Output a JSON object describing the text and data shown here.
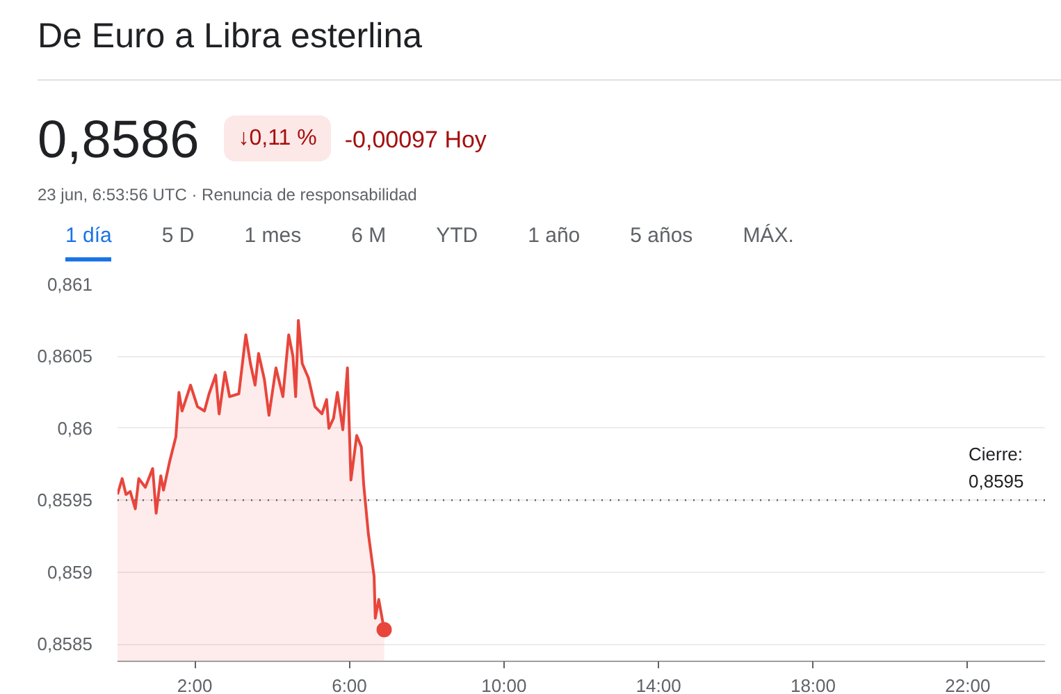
{
  "chart_data": {
    "type": "area",
    "title": "De Euro a Libra esterlina",
    "annotations": [
      "0,8586",
      "↓0,11 %",
      "-0,00097 Hoy",
      "23 jun, 6:53:56 UTC · Renuncia de responsabilidad",
      "1 día",
      "5 D",
      "1 mes",
      "6 M",
      "YTD",
      "1 año",
      "5 años",
      "MÁX."
    ],
    "x": [
      0,
      0.12,
      0.22,
      0.33,
      0.46,
      0.55,
      0.72,
      0.91,
      1.0,
      1.12,
      1.19,
      1.35,
      1.51,
      1.59,
      1.67,
      1.89,
      2.07,
      2.25,
      2.37,
      2.54,
      2.63,
      2.78,
      2.9,
      3.14,
      3.32,
      3.44,
      3.56,
      3.65,
      3.8,
      3.92,
      4.1,
      4.28,
      4.43,
      4.54,
      4.61,
      4.68,
      4.78,
      4.94,
      5.11,
      5.29,
      5.41,
      5.47,
      5.59,
      5.69,
      5.83,
      5.95,
      6.04,
      6.19,
      6.31,
      6.37,
      6.49,
      6.64,
      6.67,
      6.76,
      6.9
    ],
    "series": [
      {
        "color": "#e8453c",
        "values": [
          0.85954,
          0.85965,
          0.85954,
          0.85956,
          0.85944,
          0.85965,
          0.85959,
          0.85972,
          0.85941,
          0.85967,
          0.85957,
          0.85977,
          0.85994,
          0.86025,
          0.86012,
          0.8603,
          0.86015,
          0.86012,
          0.86024,
          0.86037,
          0.8601,
          0.86039,
          0.86022,
          0.86024,
          0.86065,
          0.86045,
          0.8603,
          0.86052,
          0.86034,
          0.86009,
          0.86042,
          0.86022,
          0.86065,
          0.8605,
          0.86022,
          0.86075,
          0.86045,
          0.86035,
          0.86015,
          0.8601,
          0.8602,
          0.86,
          0.86007,
          0.86025,
          0.85999,
          0.86042,
          0.85964,
          0.85995,
          0.85987,
          0.85961,
          0.85927,
          0.85897,
          0.85868,
          0.85881,
          0.8586
        ]
      }
    ],
    "xlim": [
      0,
      24
    ],
    "xticks": [
      {
        "value": 2,
        "label": "2:00"
      },
      {
        "value": 6,
        "label": "6:00"
      },
      {
        "value": 10,
        "label": "10:00"
      },
      {
        "value": 14,
        "label": "14:00"
      },
      {
        "value": 18,
        "label": "18:00"
      },
      {
        "value": 22,
        "label": "22:00"
      }
    ],
    "ylim": [
      0.85838,
      0.861
    ],
    "yticks": [
      {
        "value": 0.8585,
        "label": "0,8585"
      },
      {
        "value": 0.859,
        "label": "0,859"
      },
      {
        "value": 0.8595,
        "label": "0,8595"
      },
      {
        "value": 0.86,
        "label": "0,86"
      },
      {
        "value": 0.8605,
        "label": "0,8605"
      },
      {
        "value": 0.861,
        "label": "0,861"
      }
    ],
    "ref_lines": [
      {
        "axis": "y",
        "value": 0.8595,
        "label": "Cierre: 0,8595",
        "color": "#5f6368",
        "line_style": "dotted"
      }
    ],
    "grid": "y"
  }
}
